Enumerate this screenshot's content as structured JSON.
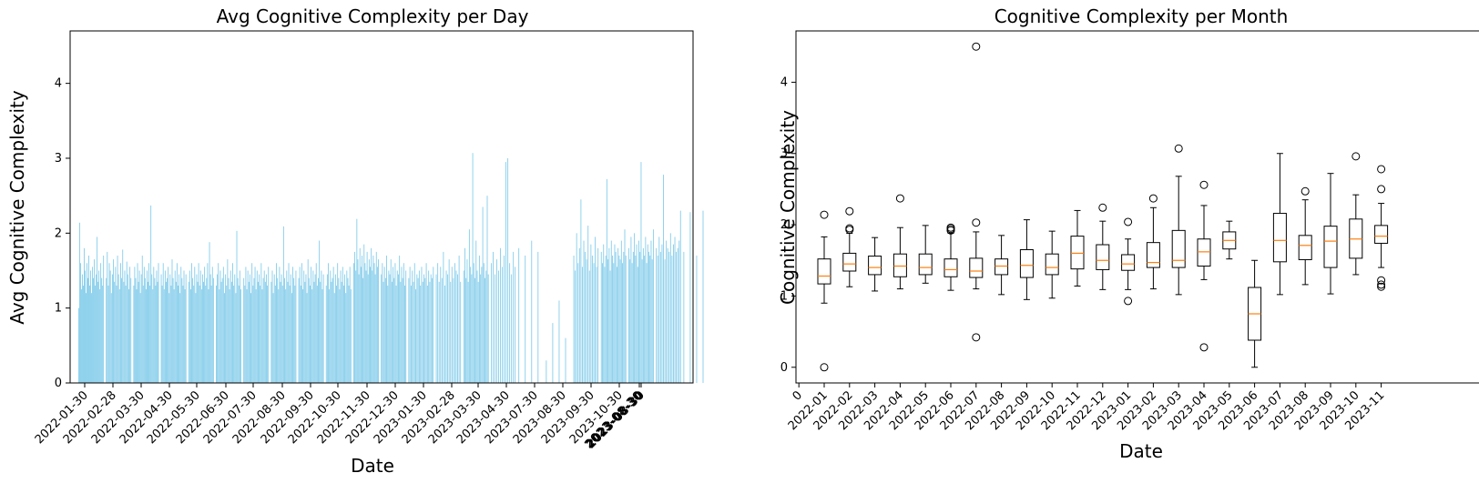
{
  "chart_data": [
    {
      "type": "bar",
      "title": "Avg Cognitive Complexity per Day",
      "xlabel": "Date",
      "ylabel": "Avg Cognitive Complexity",
      "ylim": [
        0,
        4.7
      ],
      "yticks": [
        "0",
        "1",
        "2",
        "3",
        "4"
      ],
      "xticks": [
        "2022-01-30",
        "2022-02-28",
        "2022-03-30",
        "2022-04-30",
        "2022-05-30",
        "2022-06-30",
        "2022-07-30",
        "2022-08-30",
        "2022-09-30",
        "2022-10-30",
        "2022-11-30",
        "2022-12-30",
        "2023-01-30",
        "2023-02-28",
        "2023-03-30",
        "2023-04-30",
        "2023-07-30",
        "2023-08-30",
        "2023-09-30",
        "2023-10-30",
        "2023-08-30",
        "2023-08-30"
      ],
      "color": "#87ceeb",
      "grid": false,
      "months": [
        {
          "month": "2022-01",
          "values": [
            1.0,
            2.14,
            1.6,
            1.25,
            1.45,
            1.3,
            1.8,
            1.5,
            1.2,
            1.6,
            1.4,
            1.7,
            1.3,
            1.5,
            1.2,
            1.55,
            1.4,
            1.65,
            1.3,
            1.45,
            1.95,
            1.35,
            1.5,
            1.25,
            1.6,
            1.4,
            1.3,
            1.7
          ]
        },
        {
          "month": "2022-02",
          "values": [
            1.4,
            1.75,
            1.3,
            1.6,
            1.5,
            1.2,
            1.45,
            1.65,
            1.35,
            1.55,
            1.3,
            1.7,
            1.45,
            1.25,
            1.6,
            1.4,
            1.78,
            1.35,
            1.5,
            1.3,
            1.62,
            1.45,
            1.25,
            1.55,
            1.4
          ]
        },
        {
          "month": "2022-03",
          "values": [
            1.3,
            1.55,
            1.4,
            1.25,
            1.6,
            1.35,
            1.5,
            1.2,
            1.45,
            1.7,
            1.3,
            1.55,
            1.4,
            1.25,
            1.5,
            1.35,
            1.6,
            1.3,
            2.37,
            1.45,
            1.25,
            1.55,
            1.4,
            1.3,
            1.5,
            1.35,
            1.6
          ]
        },
        {
          "month": "2022-04",
          "values": [
            1.45,
            1.3,
            1.6,
            1.25,
            1.5,
            1.35,
            1.4,
            1.55,
            1.2,
            1.45,
            1.3,
            1.65,
            1.4,
            1.25,
            1.5,
            1.35,
            1.6,
            1.3,
            1.45,
            1.2,
            1.55,
            1.4,
            1.3,
            1.5,
            1.25,
            1.45
          ]
        },
        {
          "month": "2022-05",
          "values": [
            1.35,
            1.5,
            1.25,
            1.6,
            1.4,
            1.3,
            1.55,
            1.2,
            1.45,
            1.35,
            1.6,
            1.3,
            1.5,
            1.25,
            1.45,
            1.35,
            1.55,
            1.3,
            1.4,
            1.6,
            1.25,
            1.88,
            1.45,
            1.3,
            1.55,
            1.4
          ]
        },
        {
          "month": "2022-06",
          "values": [
            1.3,
            1.45,
            1.6,
            1.25,
            1.5,
            1.35,
            1.4,
            1.55,
            1.2,
            1.45,
            1.3,
            1.65,
            1.4,
            1.25,
            1.5,
            1.35,
            1.6,
            1.3,
            1.45,
            1.2,
            2.03,
            1.4,
            1.3,
            1.5,
            1.25
          ]
        },
        {
          "month": "2022-07",
          "values": [
            1.4,
            1.3,
            1.55,
            1.25,
            1.5,
            1.35,
            1.45,
            1.2,
            1.6,
            1.3,
            1.4,
            1.55,
            1.25,
            1.5,
            1.35,
            1.45,
            1.3,
            1.6,
            1.25,
            1.4,
            1.5,
            1.35,
            1.45,
            1.3,
            1.55
          ]
        },
        {
          "month": "2022-08",
          "values": [
            1.35,
            1.5,
            1.2,
            1.45,
            1.3,
            1.6,
            1.4,
            1.25,
            1.55,
            1.35,
            1.45,
            1.3,
            2.09,
            1.4,
            1.25,
            1.5,
            1.35,
            1.6,
            1.3,
            1.45,
            1.2,
            1.55,
            1.4,
            1.3,
            1.5
          ]
        },
        {
          "month": "2022-09",
          "values": [
            1.4,
            1.55,
            1.3,
            1.6,
            1.25,
            1.5,
            1.35,
            1.45,
            1.2,
            1.65,
            1.4,
            1.3,
            1.55,
            1.25,
            1.5,
            1.35,
            1.45,
            1.6,
            1.3,
            1.4,
            1.9,
            1.35,
            1.5,
            1.25,
            1.45
          ]
        },
        {
          "month": "2022-10",
          "values": [
            1.3,
            1.45,
            1.6,
            1.25,
            1.5,
            1.35,
            1.4,
            1.55,
            1.2,
            1.45,
            1.3,
            1.6,
            1.4,
            1.25,
            1.5,
            1.35,
            1.55,
            1.3,
            1.45,
            1.2,
            1.5,
            1.4,
            1.3,
            1.55,
            1.25
          ]
        },
        {
          "month": "2022-11",
          "values": [
            1.6,
            1.75,
            1.5,
            2.19,
            1.65,
            1.45,
            1.8,
            1.55,
            1.7,
            1.4,
            1.85,
            1.6,
            1.5,
            1.75,
            1.45,
            1.65,
            1.55,
            1.8,
            1.5,
            1.7,
            1.6,
            1.45,
            1.75,
            1.55,
            1.65
          ]
        },
        {
          "month": "2022-12",
          "values": [
            1.45,
            1.6,
            1.35,
            1.55,
            1.4,
            1.7,
            1.3,
            1.5,
            1.45,
            1.65,
            1.35,
            1.55,
            1.4,
            1.6,
            1.3,
            1.5,
            1.45,
            1.7,
            1.35,
            1.55,
            1.4,
            1.6,
            1.3,
            1.5
          ]
        },
        {
          "month": "2023-01",
          "values": [
            1.4,
            1.55,
            1.3,
            1.5,
            1.35,
            1.6,
            1.25,
            1.45,
            1.4,
            1.5,
            1.3,
            1.55,
            1.35,
            1.45,
            1.4,
            1.6,
            1.3,
            1.5,
            1.35,
            1.45,
            1.4,
            1.55
          ]
        },
        {
          "month": "2023-02",
          "values": [
            1.45,
            1.6,
            1.35,
            1.55,
            1.4,
            1.75,
            1.3,
            1.5,
            1.45,
            1.65,
            1.35,
            1.55,
            1.4,
            1.6,
            1.5,
            1.45,
            1.7,
            1.35
          ]
        },
        {
          "month": "2023-03",
          "values": [
            1.5,
            1.8,
            1.4,
            1.65,
            1.35,
            2.05,
            1.55,
            1.45,
            3.07,
            1.6,
            1.4,
            1.9,
            1.5,
            1.35,
            1.7,
            1.45,
            1.55,
            2.35,
            1.6,
            1.4,
            1.5,
            2.5,
            1.45
          ]
        },
        {
          "month": "2023-04",
          "values": [
            1.6,
            1.75,
            1.45,
            1.65,
            1.5,
            1.8,
            1.55,
            1.7,
            2.95,
            3.0,
            1.6,
            1.45,
            1.75,
            1.55
          ]
        },
        {
          "month": "2023-05",
          "values": [
            1.8,
            1.7,
            1.9,
            1.75
          ]
        },
        {
          "month": "2023-06",
          "values": [
            0.3,
            0.8,
            1.1,
            0.6
          ]
        },
        {
          "month": "2023-07",
          "values": [
            1.7,
            1.5,
            2.0,
            1.6,
            1.8,
            2.45,
            1.55,
            1.9,
            1.75,
            1.65,
            2.1,
            1.5,
            1.85,
            1.7,
            1.6,
            1.95,
            1.55,
            1.8
          ]
        },
        {
          "month": "2023-08",
          "values": [
            1.75,
            1.6,
            1.85,
            1.55,
            1.7,
            2.72,
            1.65,
            1.8,
            1.5,
            1.9,
            1.7,
            1.6,
            1.85,
            1.75,
            1.55,
            1.8,
            1.7,
            1.65,
            1.9,
            1.6,
            1.75,
            2.05,
            1.7
          ]
        },
        {
          "month": "2023-09",
          "values": [
            1.8,
            1.65,
            1.95,
            1.6,
            1.75,
            2.0,
            1.7,
            1.85,
            1.55,
            1.9,
            1.75,
            2.95,
            1.65,
            1.8,
            1.7,
            1.95,
            1.6,
            1.85,
            1.75,
            1.7,
            1.9,
            1.65,
            2.05
          ]
        },
        {
          "month": "2023-10",
          "values": [
            1.8,
            1.7,
            1.95,
            1.75,
            1.85,
            2.78,
            1.65,
            1.9,
            1.8,
            1.75,
            2.0,
            1.7,
            1.85,
            1.95,
            1.75,
            1.8,
            1.9,
            2.3
          ]
        },
        {
          "month": "2023-11",
          "values": [
            1.75,
            2.28,
            1.7,
            2.3
          ]
        }
      ]
    },
    {
      "type": "boxplot",
      "title": "Cognitive Complexity per Month",
      "xlabel": "Date",
      "ylabel": "Cognitive Complexity",
      "ylim": [
        -0.22,
        4.72
      ],
      "yticks": [
        "0",
        "1",
        "2",
        "3",
        "4"
      ],
      "first_xtick": "0",
      "grid": false,
      "box_color": "#000000",
      "median_color": "#ff7f0e",
      "boxes": [
        {
          "label": "2022-01",
          "whislo": 0.9,
          "q1": 1.17,
          "med": 1.28,
          "q3": 1.52,
          "whishi": 1.83,
          "fliers": [
            2.14,
            0.0
          ]
        },
        {
          "label": "2022-02",
          "whislo": 1.13,
          "q1": 1.35,
          "med": 1.45,
          "q3": 1.6,
          "whishi": 1.88,
          "fliers": [
            2.19,
            1.95,
            1.93
          ]
        },
        {
          "label": "2022-03",
          "whislo": 1.07,
          "q1": 1.3,
          "med": 1.4,
          "q3": 1.56,
          "whishi": 1.82,
          "fliers": []
        },
        {
          "label": "2022-04",
          "whislo": 1.1,
          "q1": 1.27,
          "med": 1.42,
          "q3": 1.59,
          "whishi": 1.96,
          "fliers": [
            2.37
          ]
        },
        {
          "label": "2022-05",
          "whislo": 1.18,
          "q1": 1.3,
          "med": 1.4,
          "q3": 1.59,
          "whishi": 1.99,
          "fliers": []
        },
        {
          "label": "2022-06",
          "whislo": 1.08,
          "q1": 1.27,
          "med": 1.37,
          "q3": 1.52,
          "whishi": 1.88,
          "fliers": [
            1.96,
            1.94,
            1.92
          ]
        },
        {
          "label": "2022-07",
          "whislo": 1.1,
          "q1": 1.26,
          "med": 1.35,
          "q3": 1.53,
          "whishi": 1.9,
          "fliers": [
            4.5,
            2.03,
            0.42
          ]
        },
        {
          "label": "2022-08",
          "whislo": 1.02,
          "q1": 1.3,
          "med": 1.42,
          "q3": 1.52,
          "whishi": 1.85,
          "fliers": []
        },
        {
          "label": "2022-09",
          "whislo": 0.95,
          "q1": 1.26,
          "med": 1.43,
          "q3": 1.65,
          "whishi": 2.07,
          "fliers": []
        },
        {
          "label": "2022-10",
          "whislo": 0.97,
          "q1": 1.3,
          "med": 1.4,
          "q3": 1.59,
          "whishi": 1.91,
          "fliers": []
        },
        {
          "label": "2022-11",
          "whislo": 1.14,
          "q1": 1.38,
          "med": 1.6,
          "q3": 1.84,
          "whishi": 2.2,
          "fliers": []
        },
        {
          "label": "2022-12",
          "whislo": 1.09,
          "q1": 1.37,
          "med": 1.5,
          "q3": 1.72,
          "whishi": 2.05,
          "fliers": [
            2.24
          ]
        },
        {
          "label": "2023-01",
          "whislo": 1.09,
          "q1": 1.36,
          "med": 1.45,
          "q3": 1.58,
          "whishi": 1.8,
          "fliers": [
            2.04,
            0.93
          ]
        },
        {
          "label": "2023-02",
          "whislo": 1.1,
          "q1": 1.4,
          "med": 1.47,
          "q3": 1.75,
          "whishi": 2.24,
          "fliers": [
            2.37
          ]
        },
        {
          "label": "2023-03",
          "whislo": 1.02,
          "q1": 1.4,
          "med": 1.5,
          "q3": 1.92,
          "whishi": 2.68,
          "fliers": [
            3.07
          ]
        },
        {
          "label": "2023-04",
          "whislo": 1.23,
          "q1": 1.42,
          "med": 1.62,
          "q3": 1.8,
          "whishi": 2.27,
          "fliers": [
            2.56,
            0.28
          ]
        },
        {
          "label": "2023-05",
          "whislo": 1.52,
          "q1": 1.66,
          "med": 1.78,
          "q3": 1.9,
          "whishi": 2.05,
          "fliers": []
        },
        {
          "label": "2023-06",
          "whislo": 0.0,
          "q1": 0.38,
          "med": 0.75,
          "q3": 1.12,
          "whishi": 1.5,
          "fliers": []
        },
        {
          "label": "2023-07",
          "whislo": 1.02,
          "q1": 1.48,
          "med": 1.78,
          "q3": 2.16,
          "whishi": 3.0,
          "fliers": []
        },
        {
          "label": "2023-08",
          "whislo": 1.16,
          "q1": 1.51,
          "med": 1.71,
          "q3": 1.85,
          "whishi": 2.35,
          "fliers": [
            2.47
          ]
        },
        {
          "label": "2023-09",
          "whislo": 1.03,
          "q1": 1.4,
          "med": 1.77,
          "q3": 1.98,
          "whishi": 2.72,
          "fliers": []
        },
        {
          "label": "2023-10",
          "whislo": 1.3,
          "q1": 1.53,
          "med": 1.8,
          "q3": 2.08,
          "whishi": 2.42,
          "fliers": [
            2.96
          ]
        },
        {
          "label": "2023-11",
          "whislo": 1.4,
          "q1": 1.74,
          "med": 1.84,
          "q3": 1.99,
          "whishi": 2.3,
          "fliers": [
            2.78,
            2.5,
            1.22,
            1.16,
            1.13
          ]
        }
      ]
    }
  ]
}
